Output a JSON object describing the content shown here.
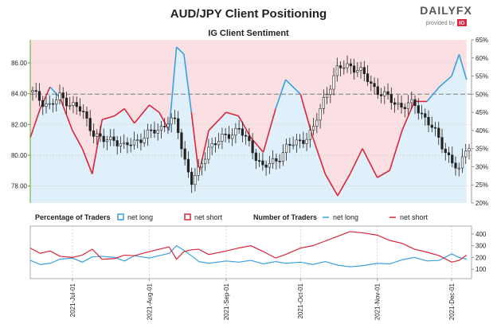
{
  "header": {
    "title": "AUD/JPY Client Positioning",
    "brand": "DAILYFX",
    "brand_sub": "provided by",
    "brand_badge": "IG"
  },
  "colors": {
    "net_long": "#3ba0e0",
    "net_short": "#d8263a",
    "long_fill": "#dff0fa",
    "short_fill": "#fbe0e3",
    "candle": "#222222",
    "axis_green": "#55aa33"
  },
  "chart_data": [
    {
      "type": "line",
      "title": "IG Client Sentiment",
      "left_axis": {
        "ticks": [
          "86.00",
          "84.00",
          "82.00",
          "80.00",
          "78.00"
        ],
        "ylim": [
          76.9,
          87.5
        ]
      },
      "right_axis": {
        "ticks": [
          "65%",
          "60%",
          "55%",
          "50%",
          "45%",
          "40%",
          "35%",
          "30%",
          "25%",
          "20%"
        ],
        "ylim": [
          20,
          65
        ]
      },
      "reference_line": "50%",
      "x": [
        "2021-06-14",
        "2021-06-18",
        "2021-06-22",
        "2021-06-26",
        "2021-07-01",
        "2021-07-05",
        "2021-07-09",
        "2021-07-13",
        "2021-07-18",
        "2021-07-22",
        "2021-07-26",
        "2021-08-01",
        "2021-08-05",
        "2021-08-09",
        "2021-08-12",
        "2021-08-15",
        "2021-08-18",
        "2021-08-21",
        "2021-08-25",
        "2021-09-01",
        "2021-09-06",
        "2021-09-11",
        "2021-09-16",
        "2021-09-21",
        "2021-09-25",
        "2021-10-01",
        "2021-10-06",
        "2021-10-11",
        "2021-10-16",
        "2021-10-21",
        "2021-10-26",
        "2021-11-01",
        "2021-11-06",
        "2021-11-11",
        "2021-11-16",
        "2021-11-21",
        "2021-11-26",
        "2021-12-01",
        "2021-12-04",
        "2021-12-07"
      ],
      "series": [
        {
          "name": "net long",
          "unit": "%",
          "values": [
            38,
            46,
            52,
            49,
            40,
            35,
            28,
            43,
            44,
            46,
            42,
            47,
            45,
            40,
            63,
            61,
            45,
            28,
            40,
            45,
            44,
            38,
            34,
            46,
            54,
            50,
            38,
            28,
            22,
            28,
            35,
            27,
            29,
            40,
            48,
            48,
            52,
            55,
            61,
            54
          ]
        },
        {
          "name": "AUD/JPY",
          "unit": "price",
          "values": [
            84.2,
            83.6,
            83.2,
            83.8,
            83.3,
            82.8,
            81.6,
            80.9,
            81.1,
            80.5,
            80.9,
            81.4,
            81.7,
            82.3,
            82.0,
            79.9,
            78.3,
            78.9,
            80.6,
            81.2,
            81.8,
            80.5,
            79.2,
            79.6,
            80.5,
            80.9,
            81.6,
            83.9,
            85.6,
            85.9,
            85.3,
            84.2,
            83.6,
            83.2,
            83.3,
            82.3,
            81.0,
            79.6,
            78.9,
            80.7
          ]
        }
      ]
    },
    {
      "type": "line",
      "legend_left": {
        "title": "Percentage of Traders",
        "items": [
          "net long",
          "net short"
        ]
      },
      "legend_right": {
        "title": "Number of Traders",
        "items": [
          "net long",
          "net short"
        ]
      },
      "x_ticks": [
        "2021-Jul-01",
        "2021-Aug-01",
        "2021-Sep-01",
        "2021-Oct-01",
        "2021-Nov-01",
        "2021-Dec-01"
      ],
      "right_axis": {
        "ticks": [
          "400",
          "300",
          "200",
          "100"
        ],
        "ylim": [
          40,
          440
        ]
      },
      "series": [
        {
          "name": "net long",
          "values": [
            175,
            140,
            150,
            185,
            195,
            160,
            205,
            210,
            200,
            170,
            215,
            195,
            215,
            235,
            300,
            260,
            215,
            165,
            150,
            170,
            160,
            175,
            145,
            165,
            150,
            160,
            140,
            165,
            135,
            120,
            130,
            150,
            145,
            180,
            200,
            170,
            175,
            230,
            200,
            185
          ]
        },
        {
          "name": "net short",
          "values": [
            280,
            235,
            255,
            210,
            200,
            220,
            270,
            185,
            190,
            220,
            215,
            250,
            270,
            290,
            185,
            250,
            265,
            270,
            225,
            255,
            280,
            300,
            250,
            195,
            225,
            280,
            300,
            340,
            380,
            420,
            410,
            390,
            345,
            320,
            270,
            245,
            215,
            160,
            175,
            220
          ]
        }
      ]
    }
  ]
}
